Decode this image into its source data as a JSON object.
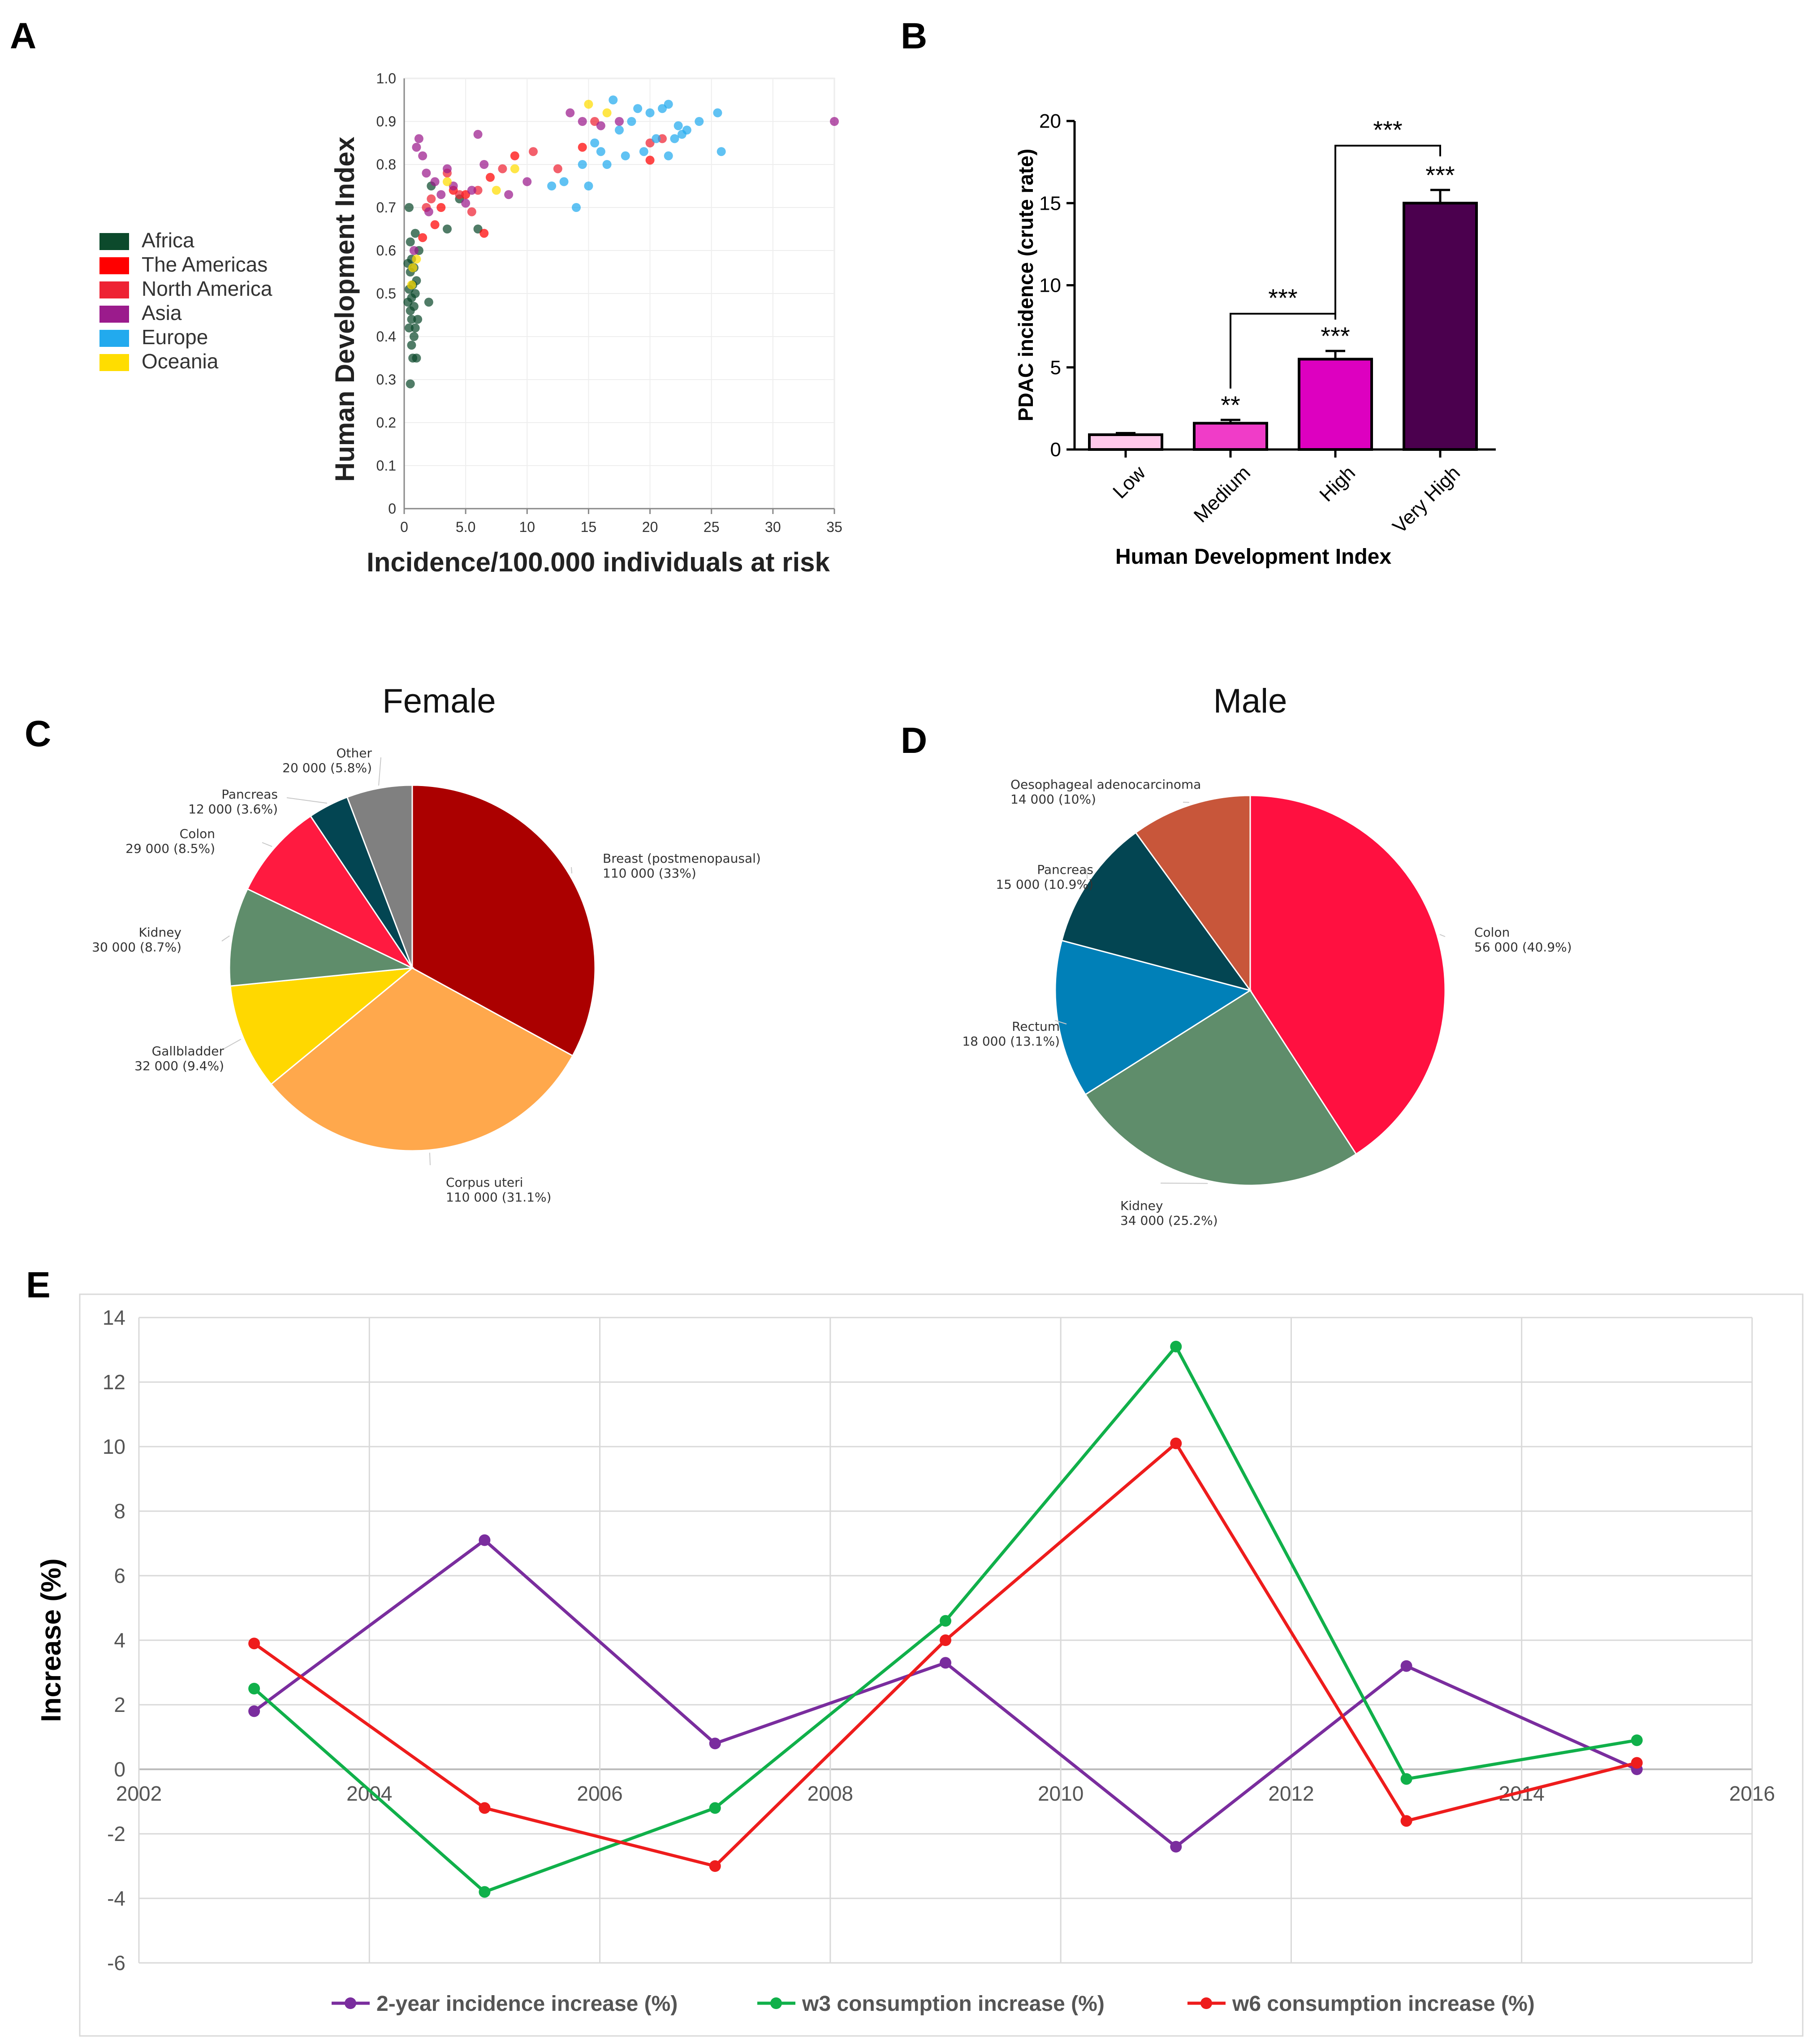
{
  "panel_letters": [
    "A",
    "B",
    "C",
    "D",
    "E"
  ],
  "chart_data": [
    {
      "panel": "A",
      "type": "scatter",
      "title": "",
      "xlabel": "Incidence/100.000 individuals at risk",
      "ylabel": "Human Development Index",
      "xlim": [
        0,
        35
      ],
      "ylim": [
        0,
        1.0
      ],
      "xticks": [
        "0",
        "5.0",
        "10",
        "15",
        "20",
        "25",
        "30",
        "35"
      ],
      "yticks": [
        "0",
        "0.1",
        "0.2",
        "0.3",
        "0.4",
        "0.5",
        "0.6",
        "0.7",
        "0.8",
        "0.9",
        "1.0"
      ],
      "legend_position": "left",
      "series": [
        {
          "name": "Africa",
          "color": "#0c4a2c",
          "points": [
            [
              0.5,
              0.29
            ],
            [
              0.7,
              0.35
            ],
            [
              1.0,
              0.35
            ],
            [
              0.6,
              0.38
            ],
            [
              0.8,
              0.4
            ],
            [
              0.4,
              0.42
            ],
            [
              0.9,
              0.42
            ],
            [
              0.6,
              0.44
            ],
            [
              1.1,
              0.44
            ],
            [
              0.5,
              0.46
            ],
            [
              0.8,
              0.47
            ],
            [
              0.3,
              0.48
            ],
            [
              0.6,
              0.49
            ],
            [
              0.9,
              0.5
            ],
            [
              0.4,
              0.51
            ],
            [
              0.7,
              0.52
            ],
            [
              1.0,
              0.53
            ],
            [
              0.5,
              0.55
            ],
            [
              0.8,
              0.56
            ],
            [
              0.3,
              0.57
            ],
            [
              0.6,
              0.58
            ],
            [
              1.2,
              0.6
            ],
            [
              0.5,
              0.62
            ],
            [
              0.9,
              0.64
            ],
            [
              2.0,
              0.48
            ],
            [
              3.5,
              0.65
            ],
            [
              6.0,
              0.65
            ],
            [
              0.4,
              0.7
            ],
            [
              2.2,
              0.75
            ],
            [
              4.5,
              0.72
            ]
          ]
        },
        {
          "name": "The Americas",
          "color": "#ff0000",
          "points": [
            [
              1.5,
              0.63
            ],
            [
              2.5,
              0.66
            ],
            [
              3.0,
              0.7
            ],
            [
              4.0,
              0.74
            ],
            [
              5.0,
              0.73
            ],
            [
              6.5,
              0.64
            ],
            [
              7.0,
              0.77
            ],
            [
              9.0,
              0.82
            ],
            [
              14.5,
              0.84
            ],
            [
              20.0,
              0.81
            ]
          ]
        },
        {
          "name": "North America",
          "color": "#ee2233",
          "points": [
            [
              1.8,
              0.7
            ],
            [
              2.2,
              0.72
            ],
            [
              3.5,
              0.78
            ],
            [
              4.5,
              0.73
            ],
            [
              5.5,
              0.69
            ],
            [
              6.0,
              0.74
            ],
            [
              8.0,
              0.79
            ],
            [
              10.5,
              0.83
            ],
            [
              12.5,
              0.79
            ],
            [
              15.5,
              0.9
            ],
            [
              20.0,
              0.85
            ],
            [
              21.0,
              0.86
            ]
          ]
        },
        {
          "name": "Asia",
          "color": "#9b1b8c",
          "points": [
            [
              0.8,
              0.6
            ],
            [
              1.0,
              0.84
            ],
            [
              1.2,
              0.86
            ],
            [
              1.5,
              0.82
            ],
            [
              1.8,
              0.78
            ],
            [
              2.0,
              0.69
            ],
            [
              2.5,
              0.76
            ],
            [
              3.0,
              0.73
            ],
            [
              3.5,
              0.79
            ],
            [
              4.0,
              0.75
            ],
            [
              5.0,
              0.71
            ],
            [
              5.5,
              0.74
            ],
            [
              6.5,
              0.8
            ],
            [
              6.0,
              0.87
            ],
            [
              8.5,
              0.73
            ],
            [
              10.0,
              0.76
            ],
            [
              13.5,
              0.92
            ],
            [
              14.5,
              0.9
            ],
            [
              16.0,
              0.89
            ],
            [
              17.5,
              0.9
            ],
            [
              35.0,
              0.9
            ]
          ]
        },
        {
          "name": "Europe",
          "color": "#22aaee",
          "points": [
            [
              12.0,
              0.75
            ],
            [
              13.0,
              0.76
            ],
            [
              14.0,
              0.7
            ],
            [
              14.5,
              0.8
            ],
            [
              15.0,
              0.75
            ],
            [
              15.5,
              0.85
            ],
            [
              16.0,
              0.83
            ],
            [
              16.5,
              0.8
            ],
            [
              17.0,
              0.95
            ],
            [
              17.5,
              0.88
            ],
            [
              18.0,
              0.82
            ],
            [
              18.5,
              0.9
            ],
            [
              19.0,
              0.93
            ],
            [
              19.5,
              0.83
            ],
            [
              20.0,
              0.92
            ],
            [
              20.5,
              0.86
            ],
            [
              21.0,
              0.93
            ],
            [
              21.5,
              0.94
            ],
            [
              22.0,
              0.86
            ],
            [
              22.3,
              0.89
            ],
            [
              22.6,
              0.87
            ],
            [
              23.0,
              0.88
            ],
            [
              24.0,
              0.9
            ],
            [
              25.5,
              0.92
            ],
            [
              25.8,
              0.83
            ],
            [
              21.5,
              0.82
            ]
          ]
        },
        {
          "name": "Oceania",
          "color": "#ffdd00",
          "points": [
            [
              0.6,
              0.52
            ],
            [
              0.7,
              0.56
            ],
            [
              1.0,
              0.58
            ],
            [
              3.5,
              0.76
            ],
            [
              7.5,
              0.74
            ],
            [
              9.0,
              0.79
            ],
            [
              15.0,
              0.94
            ],
            [
              16.5,
              0.92
            ]
          ]
        }
      ]
    },
    {
      "panel": "B",
      "type": "bar",
      "title": "",
      "xlabel": "Human Development Index",
      "ylabel": "PDAC incidence (crute rate)",
      "ylim": [
        0,
        20
      ],
      "yticks": [
        "0",
        "5",
        "10",
        "15",
        "20"
      ],
      "categories": [
        "Low",
        "Medium",
        "High",
        "Very High"
      ],
      "values": [
        0.9,
        1.6,
        5.5,
        15.0
      ],
      "errors": [
        0.1,
        0.2,
        0.5,
        0.8
      ],
      "colors": [
        "#ffc8ea",
        "#f03cc8",
        "#dd00c0",
        "#4b004e"
      ],
      "bar_labels": [
        "",
        "**",
        "***",
        "***"
      ],
      "brackets": [
        {
          "from": "Medium",
          "to": "High",
          "label": "***"
        },
        {
          "from": "High",
          "to": "Very High",
          "label": "***"
        }
      ]
    },
    {
      "panel": "C",
      "type": "pie",
      "title": "Female",
      "slices": [
        {
          "label": "Breast (postmenopausal)",
          "value_text": "110 000 (33%)",
          "value": 110000,
          "percent": 33.0,
          "color": "#ab0000"
        },
        {
          "label": "Corpus uteri",
          "value_text": "110 000 (31.1%)",
          "value": 110000,
          "percent": 31.1,
          "color": "#ffa84c"
        },
        {
          "label": "Gallbladder",
          "value_text": "32 000 (9.4%)",
          "value": 32000,
          "percent": 9.4,
          "color": "#ffd800"
        },
        {
          "label": "Kidney",
          "value_text": "30 000 (8.7%)",
          "value": 30000,
          "percent": 8.7,
          "color": "#5f8d6b"
        },
        {
          "label": "Colon",
          "value_text": "29 000 (8.5%)",
          "value": 29000,
          "percent": 8.5,
          "color": "#ff1a40"
        },
        {
          "label": "Pancreas",
          "value_text": "12 000 (3.6%)",
          "value": 12000,
          "percent": 3.6,
          "color": "#034552"
        },
        {
          "label": "Other",
          "value_text": "20 000 (5.8%)",
          "value": 20000,
          "percent": 5.8,
          "color": "#808080"
        }
      ]
    },
    {
      "panel": "D",
      "type": "pie",
      "title": "Male",
      "slices": [
        {
          "label": "Colon",
          "value_text": "56 000 (40.9%)",
          "value": 56000,
          "percent": 40.9,
          "color": "#ff1040"
        },
        {
          "label": "Kidney",
          "value_text": "34 000 (25.2%)",
          "value": 34000,
          "percent": 25.2,
          "color": "#5f8d6b"
        },
        {
          "label": "Rectum",
          "value_text": "18 000 (13.1%)",
          "value": 18000,
          "percent": 13.1,
          "color": "#0080b8"
        },
        {
          "label": "Pancreas",
          "value_text": "15 000 (10.9%)",
          "value": 15000,
          "percent": 10.9,
          "color": "#034552"
        },
        {
          "label": "Oesophageal adenocarcinoma",
          "value_text": "14 000 (10%)",
          "value": 14000,
          "percent": 10.0,
          "color": "#c8563a"
        }
      ]
    },
    {
      "panel": "E",
      "type": "line",
      "title": "",
      "xlabel": "",
      "ylabel": "Increase (%)",
      "xlim": [
        2002,
        2016
      ],
      "ylim": [
        -6,
        14
      ],
      "xticks": [
        "2002",
        "2004",
        "2006",
        "2008",
        "2010",
        "2012",
        "2014",
        "2016"
      ],
      "yticks": [
        "-6",
        "-4",
        "-2",
        "0",
        "2",
        "4",
        "6",
        "8",
        "10",
        "12",
        "14"
      ],
      "grid": true,
      "legend_position": "bottom",
      "x": [
        2003,
        2005,
        2007,
        2009,
        2011,
        2013,
        2015
      ],
      "series": [
        {
          "name": "2-year incidence increase (%)",
          "color": "#7a2d9e",
          "values": [
            1.8,
            7.1,
            0.8,
            3.3,
            -2.4,
            3.2,
            0.0
          ]
        },
        {
          "name": "w3 consumption increase (%)",
          "color": "#10b04a",
          "values": [
            2.5,
            -3.8,
            -1.2,
            4.6,
            13.1,
            -0.3,
            0.9
          ]
        },
        {
          "name": "w6 consumption increase (%)",
          "color": "#ee1c1c",
          "values": [
            3.9,
            -1.2,
            -3.0,
            4.0,
            10.1,
            -1.6,
            0.2
          ]
        }
      ]
    }
  ]
}
